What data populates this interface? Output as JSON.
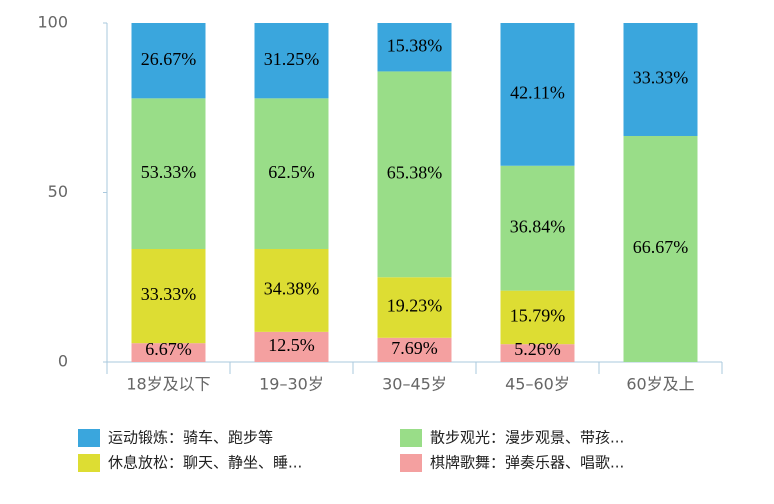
{
  "chart_data": {
    "type": "bar",
    "stack": "percent",
    "categories": [
      "18岁及以下",
      "19–30岁",
      "30–45岁",
      "45–60岁",
      "60岁及上"
    ],
    "series": [
      {
        "name": "运动锻炼：骑车、跑步等",
        "color": "#3aa6dd",
        "values": [
          26.67,
          31.25,
          15.38,
          42.11,
          33.33
        ],
        "value_labels": [
          "26.67%",
          "31.25%",
          "15.38%",
          "42.11%",
          "33.33%"
        ]
      },
      {
        "name": "散步观光：漫步观景、带孩...",
        "color": "#99dd88",
        "values": [
          53.33,
          62.5,
          65.38,
          36.84,
          66.67
        ],
        "value_labels": [
          "53.33%",
          "62.5%",
          "65.38%",
          "36.84%",
          "66.67%"
        ]
      },
      {
        "name": "休息放松：聊天、静坐、睡...",
        "color": "#dddd33",
        "values": [
          33.33,
          34.38,
          19.23,
          15.79,
          null
        ],
        "value_labels": [
          "33.33%",
          "34.38%",
          "19.23%",
          "15.79%",
          null
        ]
      },
      {
        "name": "棋牌歌舞：弹奏乐器、唱歌...",
        "color": "#f4a0a0",
        "values": [
          6.67,
          12.5,
          7.69,
          5.26,
          null
        ],
        "value_labels": [
          "6.67%",
          "12.5%",
          "7.69%",
          "5.26%",
          null
        ]
      }
    ],
    "ylim": [
      0,
      100
    ],
    "yticks": [
      0,
      50,
      100
    ]
  }
}
